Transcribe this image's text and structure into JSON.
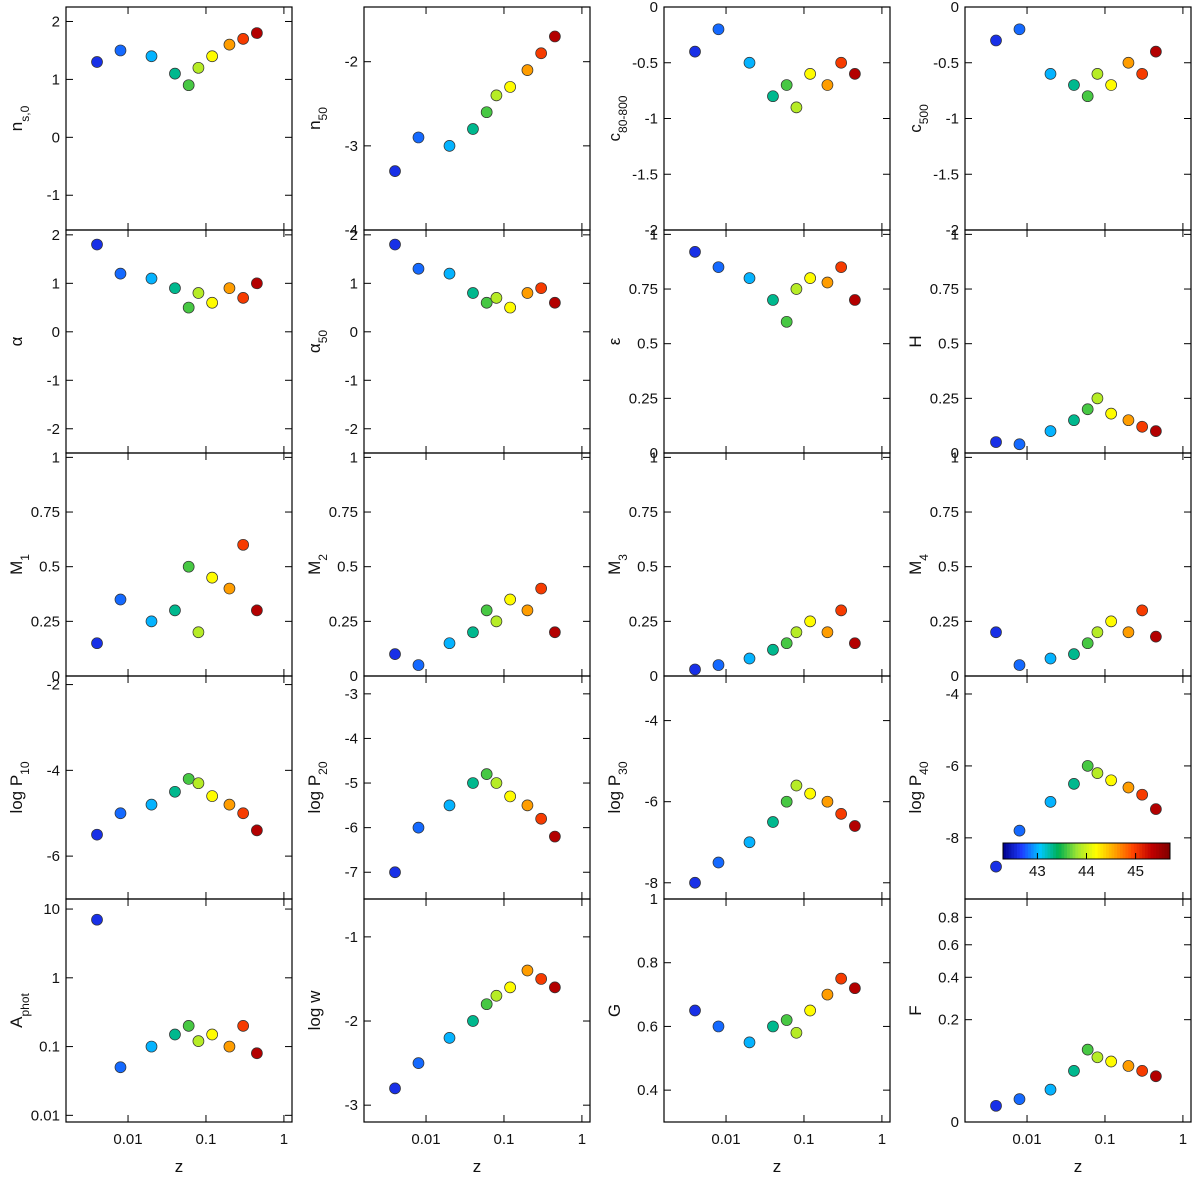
{
  "chart_data": [
    {
      "type": "scatter",
      "ylabel": "n",
      "ylabel_sub": "s,0",
      "xscale": "log",
      "xlim": [
        0.0016,
        1.27
      ],
      "xticks": [
        0.01,
        0.1,
        1
      ],
      "ylim": [
        -1.6,
        2.25
      ],
      "yticks": [
        -1,
        0,
        1,
        2
      ],
      "x": [
        0.004,
        0.008,
        0.02,
        0.04,
        0.06,
        0.08,
        0.12,
        0.2,
        0.3,
        0.45
      ],
      "y": [
        1.3,
        1.5,
        1.4,
        1.1,
        0.9,
        1.2,
        1.4,
        1.6,
        1.7,
        1.8
      ],
      "c": [
        42.6,
        42.8,
        43.0,
        43.3,
        43.6,
        43.9,
        44.2,
        44.6,
        45.0,
        45.4
      ]
    },
    {
      "type": "scatter",
      "ylabel": "n",
      "ylabel_sub": "50",
      "xscale": "log",
      "xlim": [
        0.0016,
        1.27
      ],
      "xticks": [
        0.01,
        0.1,
        1
      ],
      "ylim": [
        -4,
        -1.35
      ],
      "yticks": [
        -4,
        -3,
        -2
      ],
      "x": [
        0.004,
        0.008,
        0.02,
        0.04,
        0.06,
        0.08,
        0.12,
        0.2,
        0.3,
        0.45
      ],
      "y": [
        -3.3,
        -2.9,
        -3.0,
        -2.8,
        -2.6,
        -2.4,
        -2.3,
        -2.1,
        -1.9,
        -1.7
      ],
      "c": [
        42.6,
        42.8,
        43.0,
        43.3,
        43.6,
        43.9,
        44.2,
        44.6,
        45.0,
        45.4
      ]
    },
    {
      "type": "scatter",
      "ylabel": "c",
      "ylabel_sub": "80-800",
      "xscale": "log",
      "xlim": [
        0.0016,
        1.27
      ],
      "xticks": [
        0.01,
        0.1,
        1
      ],
      "ylim": [
        -2,
        0
      ],
      "yticks": [
        -2,
        -1.5,
        -1,
        -0.5,
        0
      ],
      "x": [
        0.004,
        0.008,
        0.02,
        0.04,
        0.06,
        0.08,
        0.12,
        0.2,
        0.3,
        0.45
      ],
      "y": [
        -0.4,
        -0.2,
        -0.5,
        -0.8,
        -0.7,
        -0.9,
        -0.6,
        -0.7,
        -0.5,
        -0.6
      ],
      "c": [
        42.6,
        42.8,
        43.0,
        43.3,
        43.6,
        43.9,
        44.2,
        44.6,
        45.0,
        45.4
      ]
    },
    {
      "type": "scatter",
      "ylabel": "c",
      "ylabel_sub": "500",
      "xscale": "log",
      "xlim": [
        0.0016,
        1.27
      ],
      "xticks": [
        0.01,
        0.1,
        1
      ],
      "ylim": [
        -2,
        0
      ],
      "yticks": [
        -2,
        -1.5,
        -1,
        -0.5,
        0
      ],
      "x": [
        0.004,
        0.008,
        0.02,
        0.04,
        0.06,
        0.08,
        0.12,
        0.2,
        0.3,
        0.45
      ],
      "y": [
        -0.3,
        -0.2,
        -0.6,
        -0.7,
        -0.8,
        -0.6,
        -0.7,
        -0.5,
        -0.6,
        -0.4
      ],
      "c": [
        42.6,
        42.8,
        43.0,
        43.3,
        43.6,
        43.9,
        44.2,
        44.6,
        45.0,
        45.4
      ]
    },
    {
      "type": "scatter",
      "ylabel": "α",
      "xscale": "log",
      "xlim": [
        0.0016,
        1.27
      ],
      "xticks": [
        0.01,
        0.1,
        1
      ],
      "ylim": [
        -2.5,
        2.1
      ],
      "yticks": [
        -2,
        -1,
        0,
        1,
        2
      ],
      "x": [
        0.004,
        0.008,
        0.02,
        0.04,
        0.06,
        0.08,
        0.12,
        0.2,
        0.3,
        0.45
      ],
      "y": [
        1.8,
        1.2,
        1.1,
        0.9,
        0.5,
        0.8,
        0.6,
        0.9,
        0.7,
        1.0
      ],
      "c": [
        42.6,
        42.8,
        43.0,
        43.3,
        43.6,
        43.9,
        44.2,
        44.6,
        45.0,
        45.4
      ]
    },
    {
      "type": "scatter",
      "ylabel": "α",
      "ylabel_sub": "50",
      "xscale": "log",
      "xlim": [
        0.0016,
        1.27
      ],
      "xticks": [
        0.01,
        0.1,
        1
      ],
      "ylim": [
        -2.5,
        2.1
      ],
      "yticks": [
        -2,
        -1,
        0,
        1,
        2
      ],
      "x": [
        0.004,
        0.008,
        0.02,
        0.04,
        0.06,
        0.08,
        0.12,
        0.2,
        0.3,
        0.45
      ],
      "y": [
        1.8,
        1.3,
        1.2,
        0.8,
        0.6,
        0.7,
        0.5,
        0.8,
        0.9,
        0.6
      ],
      "c": [
        42.6,
        42.8,
        43.0,
        43.3,
        43.6,
        43.9,
        44.2,
        44.6,
        45.0,
        45.4
      ]
    },
    {
      "type": "scatter",
      "ylabel": "ε",
      "xscale": "log",
      "xlim": [
        0.0016,
        1.27
      ],
      "xticks": [
        0.01,
        0.1,
        1
      ],
      "ylim": [
        0,
        1.02
      ],
      "yticks": [
        0,
        0.25,
        0.5,
        0.75,
        1
      ],
      "x": [
        0.004,
        0.008,
        0.02,
        0.04,
        0.06,
        0.08,
        0.12,
        0.2,
        0.3,
        0.45
      ],
      "y": [
        0.92,
        0.85,
        0.8,
        0.7,
        0.6,
        0.75,
        0.8,
        0.78,
        0.85,
        0.7
      ],
      "c": [
        42.6,
        42.8,
        43.0,
        43.3,
        43.6,
        43.9,
        44.2,
        44.6,
        45.0,
        45.4
      ]
    },
    {
      "type": "scatter",
      "ylabel": "H",
      "xscale": "log",
      "xlim": [
        0.0016,
        1.27
      ],
      "xticks": [
        0.01,
        0.1,
        1
      ],
      "ylim": [
        0,
        1.02
      ],
      "yticks": [
        0,
        0.25,
        0.5,
        0.75,
        1
      ],
      "x": [
        0.004,
        0.008,
        0.02,
        0.04,
        0.06,
        0.08,
        0.12,
        0.2,
        0.3,
        0.45
      ],
      "y": [
        0.05,
        0.04,
        0.1,
        0.15,
        0.2,
        0.25,
        0.18,
        0.15,
        0.12,
        0.1
      ],
      "c": [
        42.6,
        42.8,
        43.0,
        43.3,
        43.6,
        43.9,
        44.2,
        44.6,
        45.0,
        45.4
      ]
    },
    {
      "type": "scatter",
      "ylabel": "M",
      "ylabel_sub": "1",
      "xscale": "log",
      "xlim": [
        0.0016,
        1.27
      ],
      "xticks": [
        0.01,
        0.1,
        1
      ],
      "ylim": [
        0,
        1.02
      ],
      "yticks": [
        0,
        0.25,
        0.5,
        0.75,
        1
      ],
      "x": [
        0.004,
        0.008,
        0.02,
        0.04,
        0.06,
        0.08,
        0.12,
        0.2,
        0.3,
        0.45
      ],
      "y": [
        0.15,
        0.35,
        0.25,
        0.3,
        0.5,
        0.2,
        0.45,
        0.4,
        0.6,
        0.3
      ],
      "c": [
        42.6,
        42.8,
        43.0,
        43.3,
        43.6,
        43.9,
        44.2,
        44.6,
        45.0,
        45.4
      ]
    },
    {
      "type": "scatter",
      "ylabel": "M",
      "ylabel_sub": "2",
      "xscale": "log",
      "xlim": [
        0.0016,
        1.27
      ],
      "xticks": [
        0.01,
        0.1,
        1
      ],
      "ylim": [
        0,
        1.02
      ],
      "yticks": [
        0,
        0.25,
        0.5,
        0.75,
        1
      ],
      "x": [
        0.004,
        0.008,
        0.02,
        0.04,
        0.06,
        0.08,
        0.12,
        0.2,
        0.3,
        0.45
      ],
      "y": [
        0.1,
        0.05,
        0.15,
        0.2,
        0.3,
        0.25,
        0.35,
        0.3,
        0.4,
        0.2
      ],
      "c": [
        42.6,
        42.8,
        43.0,
        43.3,
        43.6,
        43.9,
        44.2,
        44.6,
        45.0,
        45.4
      ]
    },
    {
      "type": "scatter",
      "ylabel": "M",
      "ylabel_sub": "3",
      "xscale": "log",
      "xlim": [
        0.0016,
        1.27
      ],
      "xticks": [
        0.01,
        0.1,
        1
      ],
      "ylim": [
        0,
        1.02
      ],
      "yticks": [
        0,
        0.25,
        0.5,
        0.75,
        1
      ],
      "x": [
        0.004,
        0.008,
        0.02,
        0.04,
        0.06,
        0.08,
        0.12,
        0.2,
        0.3,
        0.45
      ],
      "y": [
        0.03,
        0.05,
        0.08,
        0.12,
        0.15,
        0.2,
        0.25,
        0.2,
        0.3,
        0.15
      ],
      "c": [
        42.6,
        42.8,
        43.0,
        43.3,
        43.6,
        43.9,
        44.2,
        44.6,
        45.0,
        45.4
      ]
    },
    {
      "type": "scatter",
      "ylabel": "M",
      "ylabel_sub": "4",
      "xscale": "log",
      "xlim": [
        0.0016,
        1.27
      ],
      "xticks": [
        0.01,
        0.1,
        1
      ],
      "ylim": [
        0,
        1.02
      ],
      "yticks": [
        0,
        0.25,
        0.5,
        0.75,
        1
      ],
      "x": [
        0.004,
        0.008,
        0.02,
        0.04,
        0.06,
        0.08,
        0.12,
        0.2,
        0.3,
        0.45
      ],
      "y": [
        0.2,
        0.05,
        0.08,
        0.1,
        0.15,
        0.2,
        0.25,
        0.2,
        0.3,
        0.18
      ],
      "c": [
        42.6,
        42.8,
        43.0,
        43.3,
        43.6,
        43.9,
        44.2,
        44.6,
        45.0,
        45.4
      ]
    },
    {
      "type": "scatter",
      "ylabel": "log P",
      "ylabel_sub": "10",
      "xscale": "log",
      "xlim": [
        0.0016,
        1.27
      ],
      "xticks": [
        0.01,
        0.1,
        1
      ],
      "ylim": [
        -7,
        -1.8
      ],
      "yticks": [
        -6,
        -4,
        -2
      ],
      "x": [
        0.004,
        0.008,
        0.02,
        0.04,
        0.06,
        0.08,
        0.12,
        0.2,
        0.3,
        0.45
      ],
      "y": [
        -5.5,
        -5.0,
        -4.8,
        -4.5,
        -4.2,
        -4.3,
        -4.6,
        -4.8,
        -5.0,
        -5.4
      ],
      "c": [
        42.6,
        42.8,
        43.0,
        43.3,
        43.6,
        43.9,
        44.2,
        44.6,
        45.0,
        45.4
      ]
    },
    {
      "type": "scatter",
      "ylabel": "log P",
      "ylabel_sub": "20",
      "xscale": "log",
      "xlim": [
        0.0016,
        1.27
      ],
      "xticks": [
        0.01,
        0.1,
        1
      ],
      "ylim": [
        -7.6,
        -2.6
      ],
      "yticks": [
        -7,
        -6,
        -5,
        -4,
        -3
      ],
      "x": [
        0.004,
        0.008,
        0.02,
        0.04,
        0.06,
        0.08,
        0.12,
        0.2,
        0.3,
        0.45
      ],
      "y": [
        -7.0,
        -6.0,
        -5.5,
        -5.0,
        -4.8,
        -5.0,
        -5.3,
        -5.5,
        -5.8,
        -6.2
      ],
      "c": [
        42.6,
        42.8,
        43.0,
        43.3,
        43.6,
        43.9,
        44.2,
        44.6,
        45.0,
        45.4
      ]
    },
    {
      "type": "scatter",
      "ylabel": "log P",
      "ylabel_sub": "30",
      "xscale": "log",
      "xlim": [
        0.0016,
        1.27
      ],
      "xticks": [
        0.01,
        0.1,
        1
      ],
      "ylim": [
        -8.4,
        -2.9
      ],
      "yticks": [
        -8,
        -6,
        -4
      ],
      "x": [
        0.004,
        0.008,
        0.02,
        0.04,
        0.06,
        0.08,
        0.12,
        0.2,
        0.3,
        0.45
      ],
      "y": [
        -8.0,
        -7.5,
        -7.0,
        -6.5,
        -6.0,
        -5.6,
        -5.8,
        -6.0,
        -6.3,
        -6.6
      ],
      "c": [
        42.6,
        42.8,
        43.0,
        43.3,
        43.6,
        43.9,
        44.2,
        44.6,
        45.0,
        45.4
      ]
    },
    {
      "type": "scatter",
      "ylabel": "log P",
      "ylabel_sub": "40",
      "xscale": "log",
      "xlim": [
        0.0016,
        1.27
      ],
      "xticks": [
        0.01,
        0.1,
        1
      ],
      "ylim": [
        -9.7,
        -3.5
      ],
      "yticks": [
        -8,
        -6,
        -4
      ],
      "x": [
        0.004,
        0.008,
        0.02,
        0.04,
        0.06,
        0.08,
        0.12,
        0.2,
        0.3,
        0.45
      ],
      "y": [
        -8.8,
        -7.8,
        -7.0,
        -6.5,
        -6.0,
        -6.2,
        -6.4,
        -6.6,
        -6.8,
        -7.2
      ],
      "c": [
        42.6,
        42.8,
        43.0,
        43.3,
        43.6,
        43.9,
        44.2,
        44.6,
        45.0,
        45.4
      ]
    },
    {
      "type": "scatter",
      "ylabel": "A",
      "ylabel_sub": "phot",
      "xlabel": "z",
      "xscale": "log",
      "yscale": "log",
      "xlim": [
        0.0016,
        1.27
      ],
      "xticks": [
        0.01,
        0.1,
        1
      ],
      "ylim": [
        0.008,
        14
      ],
      "yticks": [
        0.01,
        0.1,
        1,
        10
      ],
      "x": [
        0.004,
        0.008,
        0.02,
        0.04,
        0.06,
        0.08,
        0.12,
        0.2,
        0.3,
        0.45
      ],
      "y": [
        7,
        0.05,
        0.1,
        0.15,
        0.2,
        0.12,
        0.15,
        0.1,
        0.2,
        0.08
      ],
      "c": [
        42.6,
        42.8,
        43.0,
        43.3,
        43.6,
        43.9,
        44.2,
        44.6,
        45.0,
        45.4
      ]
    },
    {
      "type": "scatter",
      "ylabel": "log w",
      "xlabel": "z",
      "xscale": "log",
      "xlim": [
        0.0016,
        1.27
      ],
      "xticks": [
        0.01,
        0.1,
        1
      ],
      "ylim": [
        -3.2,
        -0.55
      ],
      "yticks": [
        -3,
        -2,
        -1
      ],
      "x": [
        0.004,
        0.008,
        0.02,
        0.04,
        0.06,
        0.08,
        0.12,
        0.2,
        0.3,
        0.45
      ],
      "y": [
        -2.8,
        -2.5,
        -2.2,
        -2.0,
        -1.8,
        -1.7,
        -1.6,
        -1.4,
        -1.5,
        -1.6
      ],
      "c": [
        42.6,
        42.8,
        43.0,
        43.3,
        43.6,
        43.9,
        44.2,
        44.6,
        45.0,
        45.4
      ]
    },
    {
      "type": "scatter",
      "ylabel": "G",
      "xlabel": "z",
      "xscale": "log",
      "xlim": [
        0.0016,
        1.27
      ],
      "xticks": [
        0.01,
        0.1,
        1
      ],
      "ylim": [
        0.3,
        1
      ],
      "yticks": [
        0.4,
        0.6,
        0.8,
        1
      ],
      "x": [
        0.004,
        0.008,
        0.02,
        0.04,
        0.06,
        0.08,
        0.12,
        0.2,
        0.3,
        0.45
      ],
      "y": [
        0.65,
        0.6,
        0.55,
        0.6,
        0.62,
        0.58,
        0.65,
        0.7,
        0.75,
        0.72
      ],
      "c": [
        42.6,
        42.8,
        43.0,
        43.3,
        43.6,
        43.9,
        44.2,
        44.6,
        45.0,
        45.4
      ]
    },
    {
      "type": "scatter",
      "ylabel": "F",
      "xlabel": "z",
      "xscale": "log",
      "yscale": "sqrt",
      "xlim": [
        0.0016,
        1.27
      ],
      "xticks": [
        0.01,
        0.1,
        1
      ],
      "ylim": [
        0,
        0.95
      ],
      "yticks": [
        0,
        0.2,
        0.4,
        0.6,
        0.8
      ],
      "x": [
        0.004,
        0.008,
        0.02,
        0.04,
        0.06,
        0.08,
        0.12,
        0.2,
        0.3,
        0.45
      ],
      "y": [
        0.005,
        0.01,
        0.02,
        0.05,
        0.1,
        0.08,
        0.07,
        0.06,
        0.05,
        0.04
      ],
      "c": [
        42.6,
        42.8,
        43.0,
        43.3,
        43.6,
        43.9,
        44.2,
        44.6,
        45.0,
        45.4
      ]
    },
    {
      "type": "colorbar",
      "clim": [
        42.3,
        45.7
      ],
      "ticks": [
        43,
        44,
        45
      ],
      "colors": [
        "#00008b",
        "#1e3cff",
        "#00c8ff",
        "#00b050",
        "#a0e632",
        "#ffff00",
        "#ffa500",
        "#ff4500",
        "#c00000",
        "#7f0000"
      ]
    }
  ]
}
